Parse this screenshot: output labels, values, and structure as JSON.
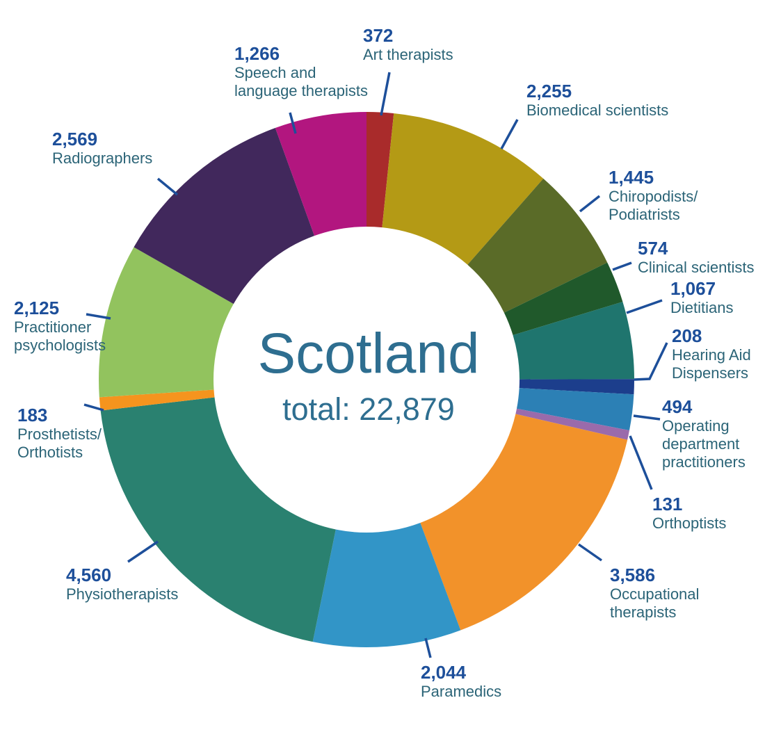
{
  "colors": {
    "background": "#ffffff",
    "number_text": "#1d4f9a",
    "label_text": "#2b6477",
    "center_text": "#2e6e90",
    "leader_line": "#1d4f9a"
  },
  "chart_data": {
    "type": "pie",
    "subtype": "donut",
    "title": "Scotland",
    "center_label": "total: 22,879",
    "total": 22879,
    "start_angle_deg": 0,
    "direction": "clockwise",
    "legend_position": "around",
    "segments": [
      {
        "name": "Art therapists",
        "value": 372,
        "value_label": "372",
        "label": "Art therapists",
        "color": "#a92b2b"
      },
      {
        "name": "Biomedical scientists",
        "value": 2255,
        "value_label": "2,255",
        "label": "Biomedical scientists",
        "color": "#b49a15"
      },
      {
        "name": "Chiropodists/Podiatrists",
        "value": 1445,
        "value_label": "1,445",
        "label": "Chiropodists/\nPodiatrists",
        "color": "#5a6b28"
      },
      {
        "name": "Clinical scientists",
        "value": 574,
        "value_label": "574",
        "label": "Clinical scientists",
        "color": "#20592b"
      },
      {
        "name": "Dietitians",
        "value": 1067,
        "value_label": "1,067",
        "label": "Dietitians",
        "color": "#1f756e"
      },
      {
        "name": "Hearing Aid Dispensers",
        "value": 208,
        "value_label": "208",
        "label": "Hearing Aid\nDispensers",
        "color": "#1c3e8c"
      },
      {
        "name": "Operating department practitioners",
        "value": 494,
        "value_label": "494",
        "label": "Operating\ndepartment\npractitioners",
        "color": "#2c80b5"
      },
      {
        "name": "Orthoptists",
        "value": 131,
        "value_label": "131",
        "label": "Orthoptists",
        "color": "#9a6bab"
      },
      {
        "name": "Occupational therapists",
        "value": 3586,
        "value_label": "3,586",
        "label": "Occupational\ntherapists",
        "color": "#f2922a"
      },
      {
        "name": "Paramedics",
        "value": 2044,
        "value_label": "2,044",
        "label": "Paramedics",
        "color": "#3295c7"
      },
      {
        "name": "Physiotherapists",
        "value": 4560,
        "value_label": "4,560",
        "label": "Physiotherapists",
        "color": "#2a8170"
      },
      {
        "name": "Prosthetists/Orthotists",
        "value": 183,
        "value_label": "183",
        "label": "Prosthetists/\nOrthotists",
        "color": "#f5941e"
      },
      {
        "name": "Practitioner psychologists",
        "value": 2125,
        "value_label": "2,125",
        "label": "Practitioner\npsychologists",
        "color": "#92c35e"
      },
      {
        "name": "Radiographers",
        "value": 2569,
        "value_label": "2,569",
        "label": "Radiographers",
        "color": "#41285c"
      },
      {
        "name": "Speech and language therapists",
        "value": 1266,
        "value_label": "1,266",
        "label": "Speech and\nlanguage therapists",
        "color": "#b2167f"
      }
    ]
  }
}
